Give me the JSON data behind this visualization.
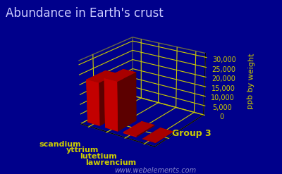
{
  "title": "Abundance in Earth's crust",
  "ylabel": "ppb by weight",
  "xlabel": "Group 3",
  "elements": [
    "scandium",
    "yttrium",
    "lutetium",
    "lawrencium"
  ],
  "values": [
    22000,
    25000,
    600,
    0
  ],
  "bar_color": "#dd0000",
  "background_color": "#00008b",
  "text_color": "#cccc00",
  "title_color": "#ccccff",
  "grid_color": "#cccc00",
  "yticks": [
    0,
    5000,
    10000,
    15000,
    20000,
    25000,
    30000
  ],
  "ylim": [
    0,
    32000
  ],
  "watermark": "www.webelements.com",
  "title_fontsize": 12,
  "label_fontsize": 8,
  "tick_fontsize": 7,
  "elev": 22,
  "azim": -55
}
